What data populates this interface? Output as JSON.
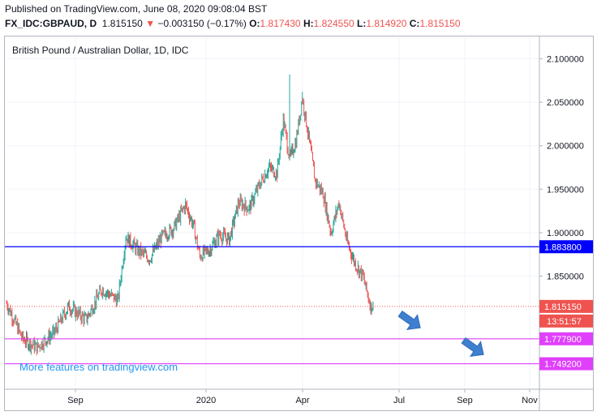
{
  "header": {
    "published": "Published on TradingView.com, June 08, 2020 09:08:04 BST",
    "symbol": "FX_IDC:GBPAUD, D",
    "last": "1.815150",
    "change_arrow": "▼",
    "change": "−0.003150 (−0.17%)",
    "open_label": "O:",
    "open": "1.817430",
    "high_label": "H:",
    "high": "1.824550",
    "low_label": "L:",
    "low": "1.814920",
    "close_label": "C:",
    "close": "1.815150"
  },
  "watermark": "More features on tradingview.com",
  "chart_data": {
    "type": "candlestick",
    "title": "British Pound / Australian Dollar, 1D, IDC",
    "ylim": [
      1.735,
      2.12
    ],
    "y_ticks": [
      "2.100000",
      "2.050000",
      "2.000000",
      "1.950000",
      "1.900000",
      "1.850000"
    ],
    "x_ticks": [
      "Sep",
      "2020",
      "Apr",
      "Jul",
      "Sep",
      "Nov"
    ],
    "horizontal_lines": [
      {
        "value": 1.8838,
        "label": "1.883800",
        "color": "#0000ff"
      },
      {
        "value": 1.7779,
        "label": "1.777900",
        "color": "#e040fb"
      },
      {
        "value": 1.7492,
        "label": "1.749200",
        "color": "#e040fb"
      }
    ],
    "last_price": {
      "value": 1.81515,
      "label": "1.815150",
      "countdown": "13:51:57",
      "color": "#ef5350"
    },
    "series": {
      "points": [
        [
          0,
          1.819
        ],
        [
          20,
          1.778
        ],
        [
          38,
          1.768
        ],
        [
          60,
          1.785
        ],
        [
          78,
          1.815
        ],
        [
          100,
          1.8
        ],
        [
          120,
          1.835
        ],
        [
          140,
          1.822
        ],
        [
          150,
          1.895
        ],
        [
          165,
          1.88
        ],
        [
          180,
          1.87
        ],
        [
          195,
          1.895
        ],
        [
          210,
          1.905
        ],
        [
          225,
          1.932
        ],
        [
          235,
          1.908
        ],
        [
          243,
          1.873
        ],
        [
          255,
          1.88
        ],
        [
          268,
          1.898
        ],
        [
          280,
          1.892
        ],
        [
          292,
          1.935
        ],
        [
          305,
          1.928
        ],
        [
          318,
          1.955
        ],
        [
          330,
          1.975
        ],
        [
          340,
          1.968
        ],
        [
          348,
          2.03
        ],
        [
          356,
          1.985
        ],
        [
          364,
          2.005
        ],
        [
          372,
          2.055
        ],
        [
          380,
          2.01
        ],
        [
          388,
          1.96
        ],
        [
          398,
          1.945
        ],
        [
          408,
          1.9
        ],
        [
          418,
          1.935
        ],
        [
          428,
          1.89
        ],
        [
          438,
          1.865
        ],
        [
          448,
          1.85
        ],
        [
          458,
          1.815
        ],
        [
          461,
          1.817
        ]
      ]
    },
    "forecast_arrows": [
      "arrow-1",
      "arrow-2"
    ],
    "colors": {
      "up": "#26a69a",
      "down": "#ef5350"
    }
  }
}
